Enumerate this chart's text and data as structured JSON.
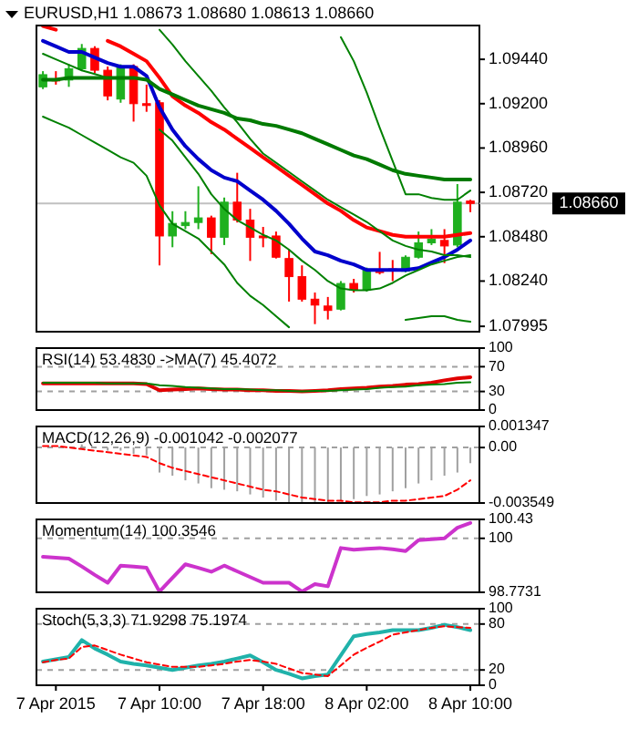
{
  "chart_data": [
    {
      "type": "candlestick",
      "title": "EURUSD,H1 1.08673 1.08680 1.08613 1.08660",
      "categories": [
        null,
        null,
        null,
        null,
        null,
        null,
        null,
        null,
        null,
        null,
        null,
        null,
        null,
        null,
        null,
        null,
        null,
        null,
        null,
        null,
        null,
        null,
        null,
        null,
        null,
        null,
        null,
        null,
        null,
        null,
        null,
        null,
        null,
        null
      ],
      "ohlc": [
        [
          1.09291,
          1.09376,
          1.09279,
          1.09357
        ],
        [
          1.09333,
          1.09376,
          1.09303,
          1.09323
        ],
        [
          1.09328,
          1.09413,
          1.09291,
          1.09389
        ],
        [
          1.09389,
          1.09523,
          1.09376,
          1.09499
        ],
        [
          1.09499,
          1.09511,
          1.09364,
          1.09381
        ],
        [
          1.09381,
          1.09401,
          1.09218,
          1.09242
        ],
        [
          1.09225,
          1.09413,
          1.09205,
          1.09401
        ],
        [
          1.09401,
          1.09413,
          1.09103,
          1.092
        ],
        [
          1.092,
          1.09303,
          1.09156,
          1.09198
        ],
        [
          1.09205,
          1.09218,
          1.08325,
          1.08484
        ],
        [
          1.08484,
          1.08618,
          1.08423,
          1.08552
        ],
        [
          1.0854,
          1.08618,
          1.08521,
          1.08557
        ],
        [
          1.08557,
          1.08753,
          1.08521,
          1.08582
        ],
        [
          1.08582,
          1.08594,
          1.08386,
          1.08477
        ],
        [
          1.08477,
          1.08692,
          1.08435,
          1.08667
        ],
        [
          1.08667,
          1.08826,
          1.08557,
          1.0857
        ],
        [
          1.0857,
          1.08631,
          1.08349,
          1.08477
        ],
        [
          1.08484,
          1.08533,
          1.08423,
          1.08482
        ],
        [
          1.08484,
          1.08508,
          1.08362,
          1.08369
        ],
        [
          1.08362,
          1.08411,
          1.08129,
          1.08264
        ],
        [
          1.08264,
          1.08325,
          1.08129,
          1.08142
        ],
        [
          1.08142,
          1.08178,
          1.08007,
          1.0811
        ],
        [
          1.08105,
          1.08154,
          1.08032,
          1.08081
        ],
        [
          1.08088,
          1.0824,
          1.08081,
          1.08227
        ],
        [
          1.08227,
          1.08252,
          1.08178,
          1.08191
        ],
        [
          1.08191,
          1.08313,
          1.08183,
          1.08301
        ],
        [
          1.08301,
          1.08398,
          1.08276,
          1.08286
        ],
        [
          1.08306,
          1.08354,
          1.0824,
          1.08304
        ],
        [
          1.08293,
          1.08379,
          1.08288,
          1.08369
        ],
        [
          1.08369,
          1.08508,
          1.08362,
          1.08447
        ],
        [
          1.08447,
          1.08521,
          1.08435,
          1.08467
        ],
        [
          1.0846,
          1.08521,
          1.08337,
          1.0843
        ],
        [
          1.08435,
          1.08765,
          1.08423,
          1.08667
        ],
        [
          1.08673,
          1.0868,
          1.08613,
          1.0866
        ]
      ],
      "colors": [
        "#1fb01f",
        "#ff0000",
        "#1fb01f",
        "#1fb01f",
        "#ff0000",
        "#ff0000",
        "#1fb01f",
        "#ff0000",
        "#ff0000",
        "#ff0000",
        "#1fb01f",
        "#1fb01f",
        "#1fb01f",
        "#ff0000",
        "#1fb01f",
        "#ff0000",
        "#ff0000",
        "#ff0000",
        "#ff0000",
        "#ff0000",
        "#ff0000",
        "#ff0000",
        "#ff0000",
        "#1fb01f",
        "#ff0000",
        "#1fb01f",
        "#ff0000",
        "#ff0000",
        "#1fb01f",
        "#1fb01f",
        "#1fb01f",
        "#ff0000",
        "#1fb01f",
        "#ff0000"
      ],
      "series": [
        {
          "type": "line",
          "color": "#ff0000",
          "values": [
            1.0962,
            1.096,
            null,
            null,
            null,
            1.0954,
            1.0951,
            1.0947,
            1.0943,
            1.0934,
            1.0924,
            1.0919,
            1.0915,
            1.091,
            1.0906,
            1.0901,
            1.0896,
            1.0891,
            1.0886,
            1.0881,
            1.0876,
            1.0871,
            1.0866,
            1.0862,
            1.0857,
            1.0853,
            1.0851,
            1.0849,
            1.0848,
            1.0848,
            1.0848,
            1.0848,
            1.0849,
            1.085
          ]
        },
        {
          "type": "line",
          "color": "#0000cc",
          "values": [
            1.0954,
            1.0951,
            1.0948,
            1.0948,
            1.0945,
            1.0942,
            1.094,
            1.094,
            1.0935,
            1.0918,
            1.0906,
            1.0897,
            1.089,
            1.0884,
            1.088,
            1.0878,
            1.0873,
            1.0868,
            1.0862,
            1.0855,
            1.0847,
            1.084,
            1.0838,
            1.0835,
            1.0833,
            1.083,
            1.083,
            1.083,
            1.083,
            1.0831,
            1.0834,
            1.0837,
            1.0841,
            1.0846
          ]
        },
        {
          "type": "line",
          "color": "#007a00",
          "values": [
            1.0933,
            1.0933,
            1.0934,
            1.0934,
            1.0934,
            1.0934,
            1.0934,
            1.0934,
            1.0933,
            1.0928,
            1.0925,
            1.0922,
            1.0919,
            1.0917,
            1.0915,
            1.0912,
            1.0911,
            1.0909,
            1.0908,
            1.0906,
            1.0904,
            1.0901,
            1.0898,
            1.0895,
            1.0892,
            1.089,
            1.0887,
            1.0884,
            1.0882,
            1.0881,
            1.088,
            1.0879,
            1.0879,
            1.0879
          ]
        },
        {
          "type": "line",
          "color": "#008000",
          "values": [
            1.0947,
            1.0944,
            1.0941,
            1.0938,
            1.0936,
            1.0934,
            null,
            null,
            null,
            null,
            null,
            null,
            null,
            null,
            null,
            null,
            null,
            null,
            null,
            null,
            null,
            null,
            null,
            1.0956,
            1.0943,
            1.0926,
            1.0907,
            1.0889,
            1.0871,
            1.0871,
            1.0869,
            1.0868,
            1.0868,
            1.0873
          ]
        },
        {
          "type": "line",
          "color": "#008000",
          "values": [
            null,
            null,
            null,
            null,
            null,
            null,
            null,
            null,
            null,
            1.096,
            1.0952,
            1.0943,
            1.0935,
            1.0927,
            1.0918,
            1.091,
            1.0901,
            1.0893,
            1.0888,
            1.0883,
            1.0878,
            1.0873,
            1.0868,
            1.0864,
            1.086,
            1.0856,
            1.0851,
            1.0846,
            1.0843,
            1.0841,
            1.084,
            1.0838,
            1.0838,
            1.0837
          ]
        },
        {
          "type": "line",
          "color": "#008000",
          "values": [
            null,
            null,
            null,
            null,
            null,
            null,
            null,
            null,
            null,
            1.0906,
            1.09,
            1.0891,
            1.0882,
            1.0871,
            1.0863,
            1.0857,
            1.0853,
            1.0849,
            1.0846,
            1.0841,
            1.0835,
            1.083,
            1.0824,
            1.082,
            1.0819,
            1.0819,
            1.082,
            1.0823,
            1.0827,
            1.083,
            1.0833,
            1.0835,
            1.0837,
            1.0838
          ]
        },
        {
          "type": "line",
          "color": "#008000",
          "values": [
            1.0913,
            1.091,
            1.0907,
            1.0903,
            1.0899,
            1.0895,
            1.0891,
            1.0888,
            1.0881,
            1.0865,
            1.0855,
            1.0851,
            1.0847,
            1.084,
            1.0833,
            1.0823,
            1.0816,
            1.0811,
            1.0805,
            1.0799,
            null,
            null,
            null,
            null,
            null,
            null,
            null,
            null,
            1.0803,
            1.0804,
            1.0805,
            1.0805,
            1.0803,
            1.0802
          ]
        }
      ],
      "ylim": [
        1.07966,
        1.09623
      ],
      "yticks": [
        {
          "value": 1.0944,
          "label": "1.09440"
        },
        {
          "value": 1.092,
          "label": "1.09200"
        },
        {
          "value": 1.0896,
          "label": "1.08960"
        },
        {
          "value": 1.0872,
          "label": "1.08720"
        },
        {
          "value": 1.0848,
          "label": "1.08480"
        },
        {
          "value": 1.0824,
          "label": "1.08240"
        },
        {
          "value": 1.07995,
          "label": "1.07995"
        }
      ],
      "tick_labels": "y",
      "ref_lines": [
        {
          "axis": "y",
          "value": 1.0866,
          "label": "1.08660",
          "color": "#c0c0c0"
        }
      ]
    },
    {
      "type": "line",
      "title": "RSI(14) 53.4830 ->MA(7) 45.4072",
      "categories": [
        null,
        null,
        null,
        null,
        null,
        null,
        null,
        null,
        null,
        null,
        null,
        null,
        null,
        null,
        null,
        null,
        null,
        null,
        null,
        null,
        null,
        null,
        null,
        null,
        null,
        null,
        null,
        null,
        null,
        null,
        null,
        null,
        null,
        null
      ],
      "series": [
        {
          "color": "#e00000",
          "values": [
            43,
            43,
            43,
            43,
            43,
            43,
            43,
            43,
            42,
            32,
            33,
            34,
            35,
            34,
            33,
            33,
            32,
            32,
            31,
            31,
            30,
            31,
            32,
            34,
            35,
            36,
            38,
            39,
            41,
            42,
            44,
            48,
            51,
            53
          ]
        },
        {
          "color": "#008000",
          "values": [
            44,
            44,
            44,
            44,
            44,
            43,
            43,
            43,
            43,
            40,
            39,
            37,
            36,
            35,
            34,
            34,
            33,
            32,
            32,
            31,
            30,
            31,
            31,
            32,
            33,
            34,
            36,
            37,
            38,
            40,
            41,
            42,
            44,
            45
          ]
        }
      ],
      "ylim": [
        0,
        100
      ],
      "yticks": [
        100,
        70,
        30,
        0
      ],
      "tick_labels": "y",
      "ref_lines": [
        {
          "axis": "y",
          "value": 70,
          "color": "#a0a0a0",
          "line_style": "dashed"
        },
        {
          "axis": "y",
          "value": 30,
          "color": "#a0a0a0",
          "line_style": "dashed"
        }
      ]
    },
    {
      "type": "bar",
      "title": "MACD(12,26,9) -0.001042 -0.002077",
      "categories": [
        null,
        null,
        null,
        null,
        null,
        null,
        null,
        null,
        null,
        null,
        null,
        null,
        null,
        null,
        null,
        null,
        null,
        null,
        null,
        null,
        null,
        null,
        null,
        null,
        null,
        null,
        null,
        null,
        null,
        null,
        null,
        null,
        null,
        null
      ],
      "series": [
        {
          "color": "#a0a0a0",
          "values": [
            null,
            null,
            null,
            0.0002,
            null,
            -0.0002,
            -0.0002,
            -0.0004,
            -0.0005,
            -0.0016,
            -0.0018,
            -0.0021,
            -0.0023,
            -0.0026,
            -0.0027,
            -0.0028,
            -0.003,
            -0.0032,
            -0.0034,
            -0.0035,
            -0.0035,
            -0.0035,
            -0.0035,
            -0.0034,
            -0.0033,
            -0.0031,
            -0.003,
            -0.0028,
            -0.0026,
            -0.0023,
            -0.0021,
            -0.0018,
            -0.0016,
            -0.001
          ]
        },
        {
          "type": "line",
          "color": "#ff0000",
          "line_style": "dashed",
          "values": [
            0.0001,
            0.0001,
            0,
            -0.0001,
            -0.0002,
            -0.0003,
            -0.0004,
            -0.0005,
            -0.0006,
            -0.001,
            -0.0013,
            -0.0015,
            -0.0017,
            -0.0019,
            -0.0021,
            -0.0023,
            -0.0025,
            -0.0027,
            -0.0028,
            -0.003,
            -0.0032,
            -0.0033,
            -0.0034,
            -0.0034,
            -0.0035,
            -0.0035,
            -0.0035,
            -0.0034,
            -0.0034,
            -0.0033,
            -0.0032,
            -0.0031,
            -0.0027,
            -0.0021
          ]
        }
      ],
      "ylim": [
        -0.003549,
        0.001347
      ],
      "yticks": [
        0.001347,
        {
          "value": 0,
          "label": "0.00"
        },
        -0.003549
      ],
      "tick_labels": "y",
      "ref_lines": [
        {
          "axis": "y",
          "value": 0,
          "color": "#a0a0a0",
          "line_style": "dashed"
        }
      ]
    },
    {
      "type": "line",
      "title": "Momentum(14) 100.3546",
      "categories": [
        null,
        null,
        null,
        null,
        null,
        null,
        null,
        null,
        null,
        null,
        null,
        null,
        null,
        null,
        null,
        null,
        null,
        null,
        null,
        null,
        null,
        null,
        null,
        null,
        null,
        null,
        null,
        null,
        null,
        null,
        null,
        null,
        null,
        null
      ],
      "series": [
        {
          "color": "#cc33cc",
          "values": [
            99.58,
            99.56,
            99.54,
            99.36,
            99.17,
            98.99,
            99.38,
            99.36,
            99.33,
            98.79,
            99.1,
            99.41,
            99.33,
            99.24,
            99.38,
            99.25,
            99.12,
            98.99,
            98.99,
            98.99,
            98.79,
            98.96,
            98.91,
            99.78,
            99.74,
            99.76,
            99.78,
            99.75,
            99.71,
            99.96,
            99.98,
            100.0,
            100.24,
            100.35
          ]
        }
      ],
      "ylim": [
        98.7731,
        100.43
      ],
      "yticks": [
        100.43,
        100,
        98.7731
      ],
      "tick_labels": "y",
      "ref_lines": [
        {
          "axis": "y",
          "value": 100,
          "color": "#a0a0a0",
          "line_style": "dashed"
        }
      ]
    },
    {
      "type": "line",
      "title": "Stoch(5,3,3) 71.9298 75.1974",
      "categories": [
        null,
        "7 Apr 2015",
        null,
        null,
        null,
        null,
        null,
        null,
        null,
        "7 Apr 10:00",
        null,
        null,
        null,
        null,
        null,
        null,
        null,
        "7 Apr 18:00",
        null,
        null,
        null,
        null,
        null,
        null,
        null,
        "8 Apr 02:00",
        null,
        null,
        null,
        null,
        null,
        null,
        null,
        "8 Apr 10:00"
      ],
      "series": [
        {
          "color": "#20b2aa",
          "values": [
            31,
            34,
            37,
            59,
            48,
            40,
            31,
            28,
            26,
            23,
            20,
            23,
            26,
            28,
            31,
            35,
            39,
            30,
            20,
            15,
            9,
            12,
            14,
            39,
            64,
            67,
            69,
            72,
            72,
            72,
            75,
            79,
            76,
            72
          ]
        },
        {
          "color": "#ff0000",
          "line_style": "dashed",
          "values": [
            30,
            33,
            35,
            50,
            52,
            46,
            40,
            35,
            30,
            27,
            24,
            24,
            24,
            26,
            28,
            31,
            33,
            31,
            28,
            22,
            16,
            14,
            12,
            26,
            40,
            49,
            57,
            66,
            69,
            72,
            75,
            77,
            76,
            75
          ]
        }
      ],
      "ylim": [
        0,
        100
      ],
      "yticks": [
        100,
        80,
        20,
        0
      ],
      "ref_lines": [
        {
          "axis": "y",
          "value": 80,
          "color": "#a0a0a0",
          "line_style": "dashed"
        },
        {
          "axis": "y",
          "value": 20,
          "color": "#a0a0a0",
          "line_style": "dashed"
        }
      ]
    }
  ]
}
